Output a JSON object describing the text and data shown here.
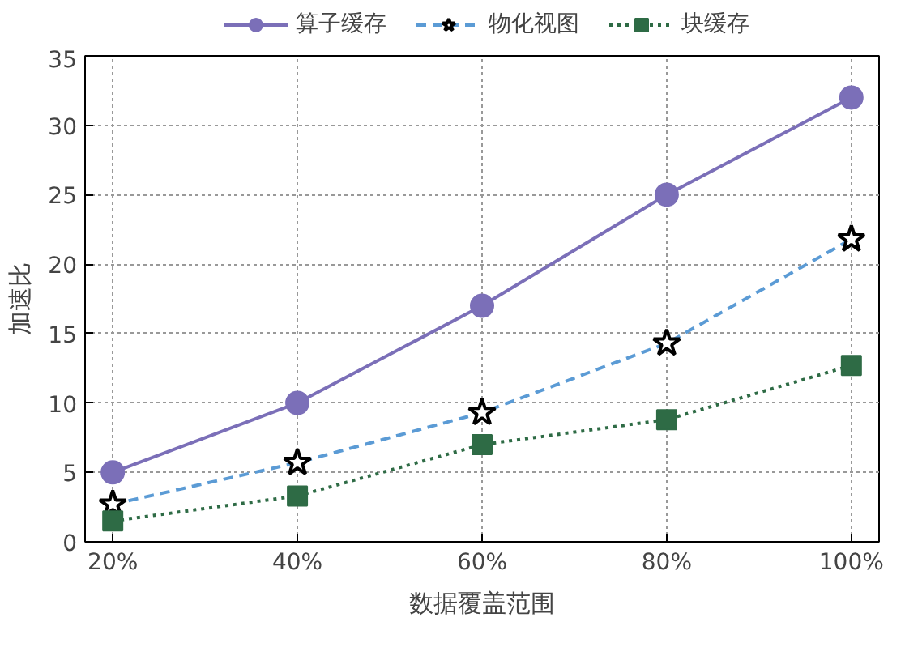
{
  "chart_data": {
    "type": "line",
    "xlabel": "数据覆盖范围",
    "ylabel": "加速比",
    "categories": [
      "20%",
      "40%",
      "60%",
      "80%",
      "100%"
    ],
    "ylim": [
      0,
      35
    ],
    "yticks": [
      0,
      5,
      10,
      15,
      20,
      25,
      30,
      35
    ],
    "grid": true,
    "legend": "top",
    "series": [
      {
        "name": "算子缓存",
        "color": "#7b6fb8",
        "values": [
          5,
          10,
          17,
          25,
          32
        ],
        "marker": "circle",
        "line_style": "solid"
      },
      {
        "name": "物化视图",
        "color": "#5b9bd5",
        "values": [
          2.7,
          5.7,
          9.3,
          14.3,
          21.8
        ],
        "marker": "star",
        "line_style": "dashed"
      },
      {
        "name": "块缓存",
        "color": "#2e6b45",
        "values": [
          1.5,
          3.3,
          7.0,
          8.8,
          12.7
        ],
        "marker": "square",
        "line_style": "dotted"
      }
    ]
  }
}
